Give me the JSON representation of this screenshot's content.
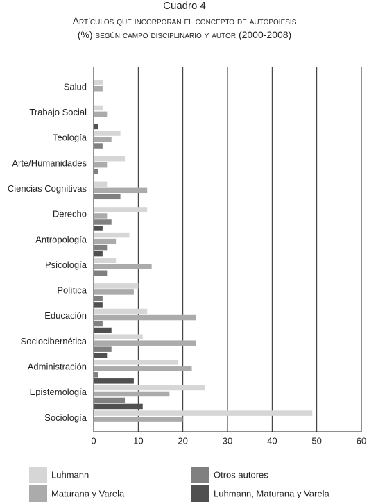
{
  "chart_data": {
    "type": "bar",
    "orientation": "horizontal",
    "title": "Cuadro 4",
    "subtitle": "Artículos que incorporan el concepto de autopoiesis (%) según campo disciplinario y autor (2000-2008)",
    "categories": [
      "Salud",
      "Trabajo Social",
      "Teología",
      "Arte/Humanidades",
      "Ciencias Cognitivas",
      "Derecho",
      "Antropología",
      "Psicología",
      "Política",
      "Educación",
      "Sociocibernética",
      "Administración",
      "Epistemología",
      "Sociología"
    ],
    "series": [
      {
        "name": "Luhmann",
        "color": "#d6d6d6",
        "values": [
          2,
          2,
          6,
          7,
          3,
          12,
          8,
          5,
          10,
          12,
          11,
          19,
          25,
          49
        ]
      },
      {
        "name": "Maturana y Varela",
        "color": "#ababab",
        "values": [
          2,
          3,
          4,
          3,
          12,
          3,
          5,
          13,
          9,
          23,
          23,
          22,
          17,
          20
        ]
      },
      {
        "name": "Otros autores",
        "color": "#808080",
        "values": [
          0,
          0,
          2,
          1,
          6,
          4,
          3,
          3,
          2,
          2,
          4,
          1,
          7,
          0
        ]
      },
      {
        "name": "Luhmann, Maturana y Varela",
        "color": "#505050",
        "values": [
          0,
          1,
          0,
          0,
          0,
          2,
          2,
          0,
          2,
          4,
          3,
          9,
          11,
          0
        ]
      }
    ],
    "xlim": [
      0,
      60
    ],
    "xticks": [
      0,
      10,
      20,
      30,
      40,
      50,
      60
    ],
    "grid": true
  }
}
